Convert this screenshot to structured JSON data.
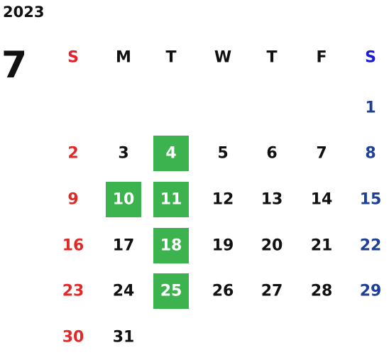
{
  "calendar": {
    "year": "2023",
    "month": "7",
    "weekdays": [
      {
        "label": "S",
        "color": "#e8202a"
      },
      {
        "label": "M",
        "color": "#111111"
      },
      {
        "label": "T",
        "color": "#111111"
      },
      {
        "label": "W",
        "color": "#111111"
      },
      {
        "label": "T",
        "color": "#111111"
      },
      {
        "label": "F",
        "color": "#111111"
      },
      {
        "label": "S",
        "color": "#1a1adc"
      }
    ],
    "day_colors": [
      "#e02a2a",
      "#111111",
      "#111111",
      "#111111",
      "#111111",
      "#111111",
      "#1d3f94"
    ],
    "highlight_color": "#3cb34e",
    "highlight_text_color": "#ffffff",
    "weeks": [
      [
        null,
        null,
        null,
        null,
        null,
        null,
        {
          "day": "1"
        }
      ],
      [
        {
          "day": "2"
        },
        {
          "day": "3"
        },
        {
          "day": "4",
          "highlight": true
        },
        {
          "day": "5"
        },
        {
          "day": "6"
        },
        {
          "day": "7"
        },
        {
          "day": "8"
        }
      ],
      [
        {
          "day": "9"
        },
        {
          "day": "10",
          "highlight": true
        },
        {
          "day": "11",
          "highlight": true
        },
        {
          "day": "12"
        },
        {
          "day": "13"
        },
        {
          "day": "14"
        },
        {
          "day": "15"
        }
      ],
      [
        {
          "day": "16"
        },
        {
          "day": "17"
        },
        {
          "day": "18",
          "highlight": true
        },
        {
          "day": "19"
        },
        {
          "day": "20"
        },
        {
          "day": "21"
        },
        {
          "day": "22"
        }
      ],
      [
        {
          "day": "23"
        },
        {
          "day": "24"
        },
        {
          "day": "25",
          "highlight": true
        },
        {
          "day": "26"
        },
        {
          "day": "27"
        },
        {
          "day": "28"
        },
        {
          "day": "29"
        }
      ],
      [
        {
          "day": "30"
        },
        {
          "day": "31"
        },
        null,
        null,
        null,
        null,
        null
      ]
    ]
  }
}
